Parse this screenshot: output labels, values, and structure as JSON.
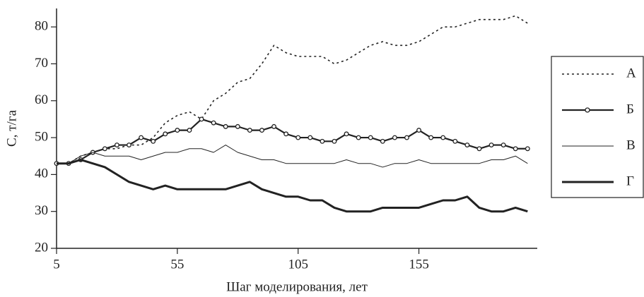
{
  "chart_data": {
    "type": "line",
    "x_label": "Шаг моделирования, лет",
    "y_label": "C, т/га",
    "x": [
      5,
      10,
      15,
      20,
      25,
      30,
      35,
      40,
      45,
      50,
      55,
      60,
      65,
      70,
      75,
      80,
      85,
      90,
      95,
      100,
      105,
      110,
      115,
      120,
      125,
      130,
      135,
      140,
      145,
      150,
      155,
      160,
      165,
      170,
      175,
      180,
      185,
      190,
      195,
      200
    ],
    "series": [
      {
        "name": "А",
        "color": "#222",
        "width": 1.6,
        "dash": "dotted",
        "markers": false,
        "values": [
          43,
          43,
          45,
          46,
          47,
          47,
          48,
          48,
          50,
          54,
          56,
          57,
          55,
          60,
          62,
          65,
          66,
          70,
          75,
          73,
          72,
          72,
          72,
          70,
          71,
          73,
          75,
          76,
          75,
          75,
          76,
          78,
          80,
          80,
          81,
          82,
          82,
          82,
          83,
          81
        ]
      },
      {
        "name": "Б",
        "color": "#222",
        "width": 2.2,
        "dash": "solid",
        "markers": true,
        "values": [
          43,
          43,
          44,
          46,
          47,
          48,
          48,
          50,
          49,
          51,
          52,
          52,
          55,
          54,
          53,
          53,
          52,
          52,
          53,
          51,
          50,
          50,
          49,
          49,
          51,
          50,
          50,
          49,
          50,
          50,
          52,
          50,
          50,
          49,
          48,
          47,
          48,
          48,
          47,
          47
        ]
      },
      {
        "name": "В",
        "color": "#222",
        "width": 1,
        "dash": "solid",
        "markers": false,
        "values": [
          43,
          43,
          45,
          46,
          45,
          45,
          45,
          44,
          45,
          46,
          46,
          47,
          47,
          46,
          48,
          46,
          45,
          44,
          44,
          43,
          43,
          43,
          43,
          43,
          44,
          43,
          43,
          42,
          43,
          43,
          44,
          43,
          43,
          43,
          43,
          43,
          44,
          44,
          45,
          43
        ]
      },
      {
        "name": "Г",
        "color": "#222",
        "width": 3,
        "dash": "solid",
        "markers": false,
        "values": [
          43,
          43,
          44,
          43,
          42,
          40,
          38,
          37,
          36,
          37,
          36,
          36,
          36,
          36,
          36,
          37,
          38,
          36,
          35,
          34,
          34,
          33,
          33,
          31,
          30,
          30,
          30,
          31,
          31,
          31,
          31,
          32,
          33,
          33,
          34,
          31,
          30,
          30,
          31,
          30
        ]
      }
    ],
    "xlim": [
      5,
      204
    ],
    "xticks": [
      5,
      55,
      105,
      155
    ],
    "ylim": [
      20,
      85
    ],
    "yticks": [
      20,
      30,
      40,
      50,
      60,
      70,
      80
    ]
  }
}
